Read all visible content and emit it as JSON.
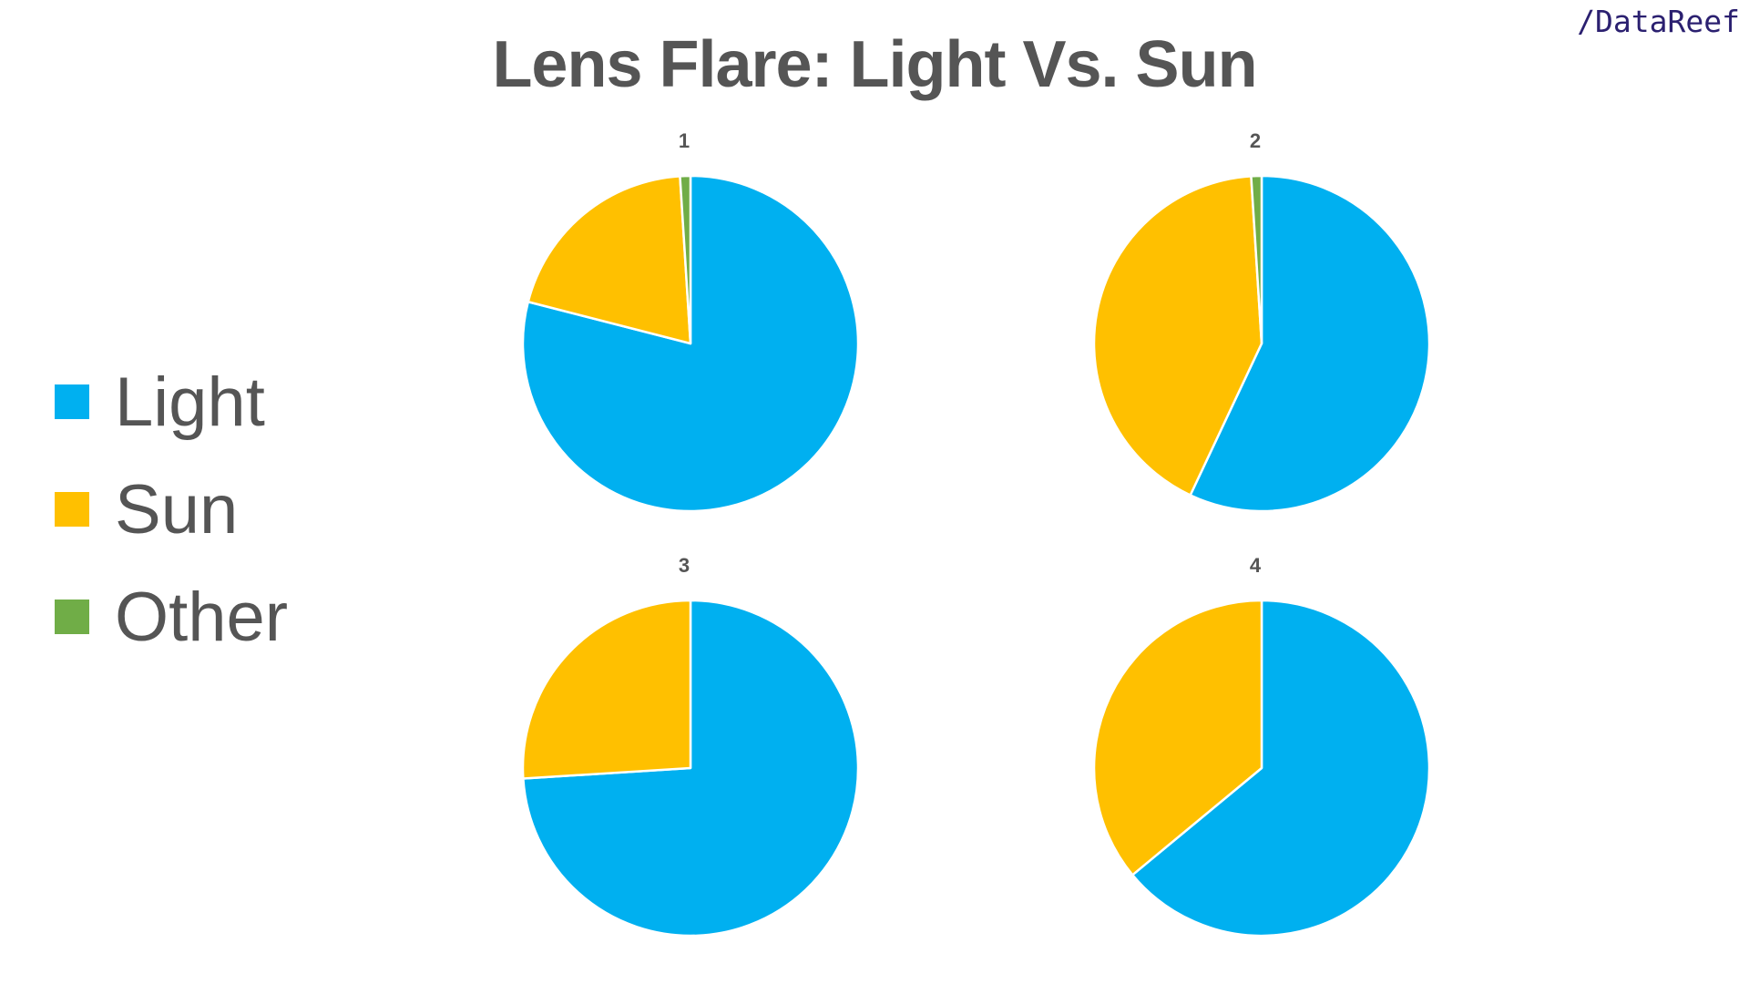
{
  "brand": "/DataReef",
  "chart_data": {
    "type": "pie",
    "title": "Lens Flare: Light Vs. Sun",
    "legend_position": "left",
    "categories": [
      "Light",
      "Sun",
      "Other"
    ],
    "colors": {
      "Light": "#00B0F0",
      "Sun": "#FFC000",
      "Other": "#70AD47"
    },
    "pies": [
      {
        "name": "1",
        "values": [
          79,
          20,
          1
        ]
      },
      {
        "name": "2",
        "values": [
          57,
          42,
          1
        ]
      },
      {
        "name": "3",
        "values": [
          74,
          26,
          0
        ]
      },
      {
        "name": "4",
        "values": [
          64,
          36,
          0
        ]
      }
    ]
  }
}
